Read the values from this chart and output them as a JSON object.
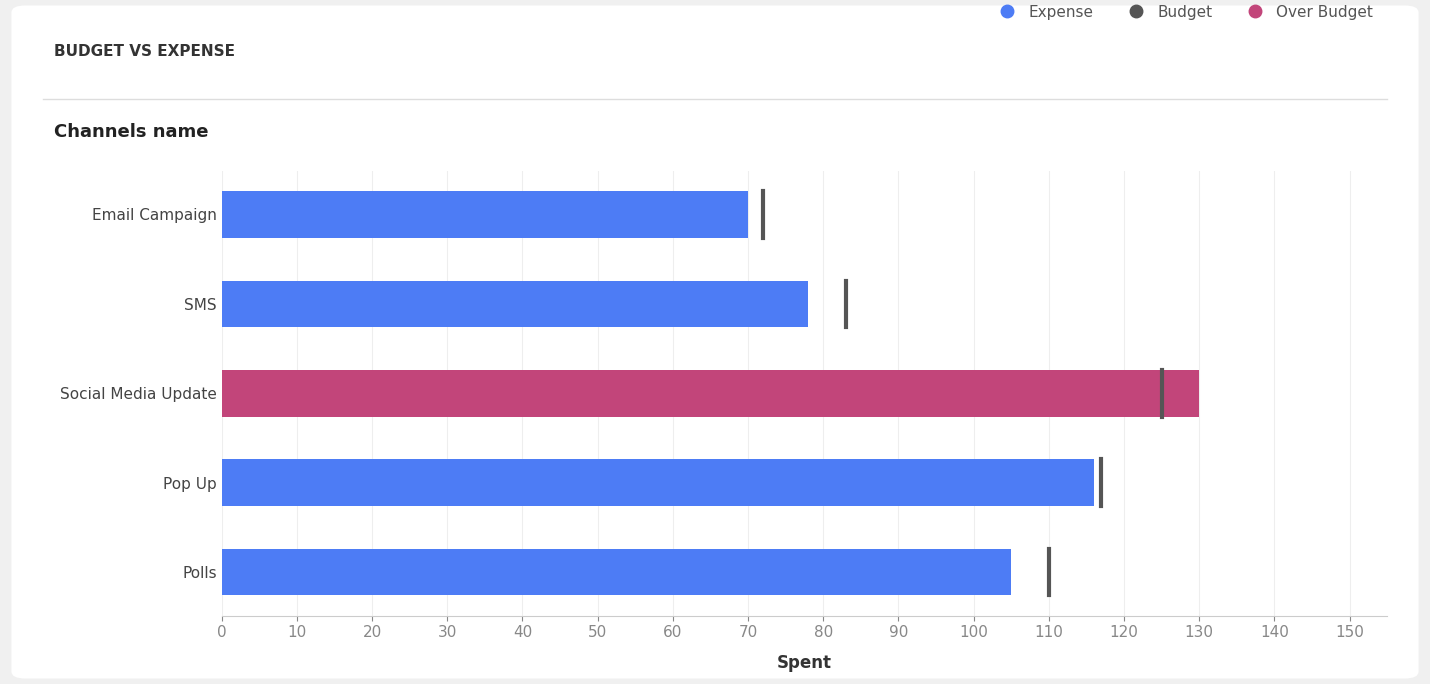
{
  "title": "BUDGET VS EXPENSE",
  "categories": [
    "Email Campaign",
    "SMS",
    "Social Media Update",
    "Pop Up",
    "Polls"
  ],
  "expense_values": [
    70,
    78,
    130,
    116,
    105
  ],
  "budget_values": [
    72,
    83,
    125,
    117,
    110
  ],
  "bar_colors": [
    "#4d7cf5",
    "#4d7cf5",
    "#c2457a",
    "#4d7cf5",
    "#4d7cf5"
  ],
  "budget_line_color": "#555555",
  "xlabel": "Spent",
  "ylabel": "Channels name",
  "xlim": [
    0,
    155
  ],
  "xticks": [
    0,
    10,
    20,
    30,
    40,
    50,
    60,
    70,
    80,
    90,
    100,
    110,
    120,
    130,
    140,
    150
  ],
  "legend_expense_color": "#4d7cf5",
  "legend_budget_color": "#555555",
  "legend_over_budget_color": "#c2457a",
  "background_color": "#ffffff",
  "outer_bg": "#f0f0f0",
  "bar_height": 0.52,
  "title_fontsize": 11,
  "axis_label_fontsize": 12,
  "tick_fontsize": 11,
  "legend_fontsize": 11,
  "ylabel_fontsize": 13
}
